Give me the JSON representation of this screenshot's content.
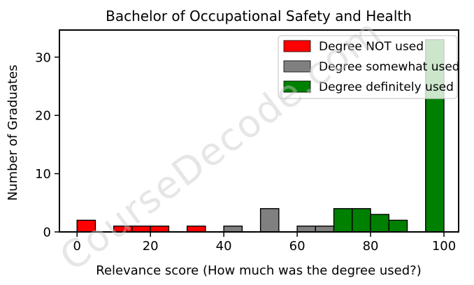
{
  "figure": {
    "kind": "histogram-figure"
  },
  "chart_data": {
    "type": "bar",
    "title": "Bachelor of Occupational Safety and Health",
    "xlabel": "Relevance score (How much was the degree used?)",
    "ylabel": "Number of Graduates",
    "xlim": [
      -4.8,
      104.0
    ],
    "ylim": [
      0,
      34.65
    ],
    "xticks": [
      0,
      20,
      40,
      60,
      80,
      100
    ],
    "yticks": [
      0,
      10,
      20,
      30
    ],
    "bin_width": 5,
    "grid": false,
    "legend_position": "upper right",
    "series": [
      {
        "name": "Degree NOT used",
        "color": "#ff0000",
        "bars": [
          {
            "start": 0,
            "count": 2
          },
          {
            "start": 10,
            "count": 1
          },
          {
            "start": 15,
            "count": 1
          },
          {
            "start": 20,
            "count": 1
          },
          {
            "start": 30,
            "count": 1
          }
        ]
      },
      {
        "name": "Degree somewhat used",
        "color": "#808080",
        "bars": [
          {
            "start": 40,
            "count": 1
          },
          {
            "start": 50,
            "count": 4
          },
          {
            "start": 60,
            "count": 1
          },
          {
            "start": 65,
            "count": 1
          }
        ]
      },
      {
        "name": "Degree definitely used",
        "color": "#008000",
        "bars": [
          {
            "start": 70,
            "count": 4
          },
          {
            "start": 75,
            "count": 4
          },
          {
            "start": 80,
            "count": 3
          },
          {
            "start": 85,
            "count": 2
          },
          {
            "start": 95,
            "count": 33
          }
        ]
      }
    ],
    "edge_color": "#000000",
    "watermark": "CourseDecode.com"
  }
}
